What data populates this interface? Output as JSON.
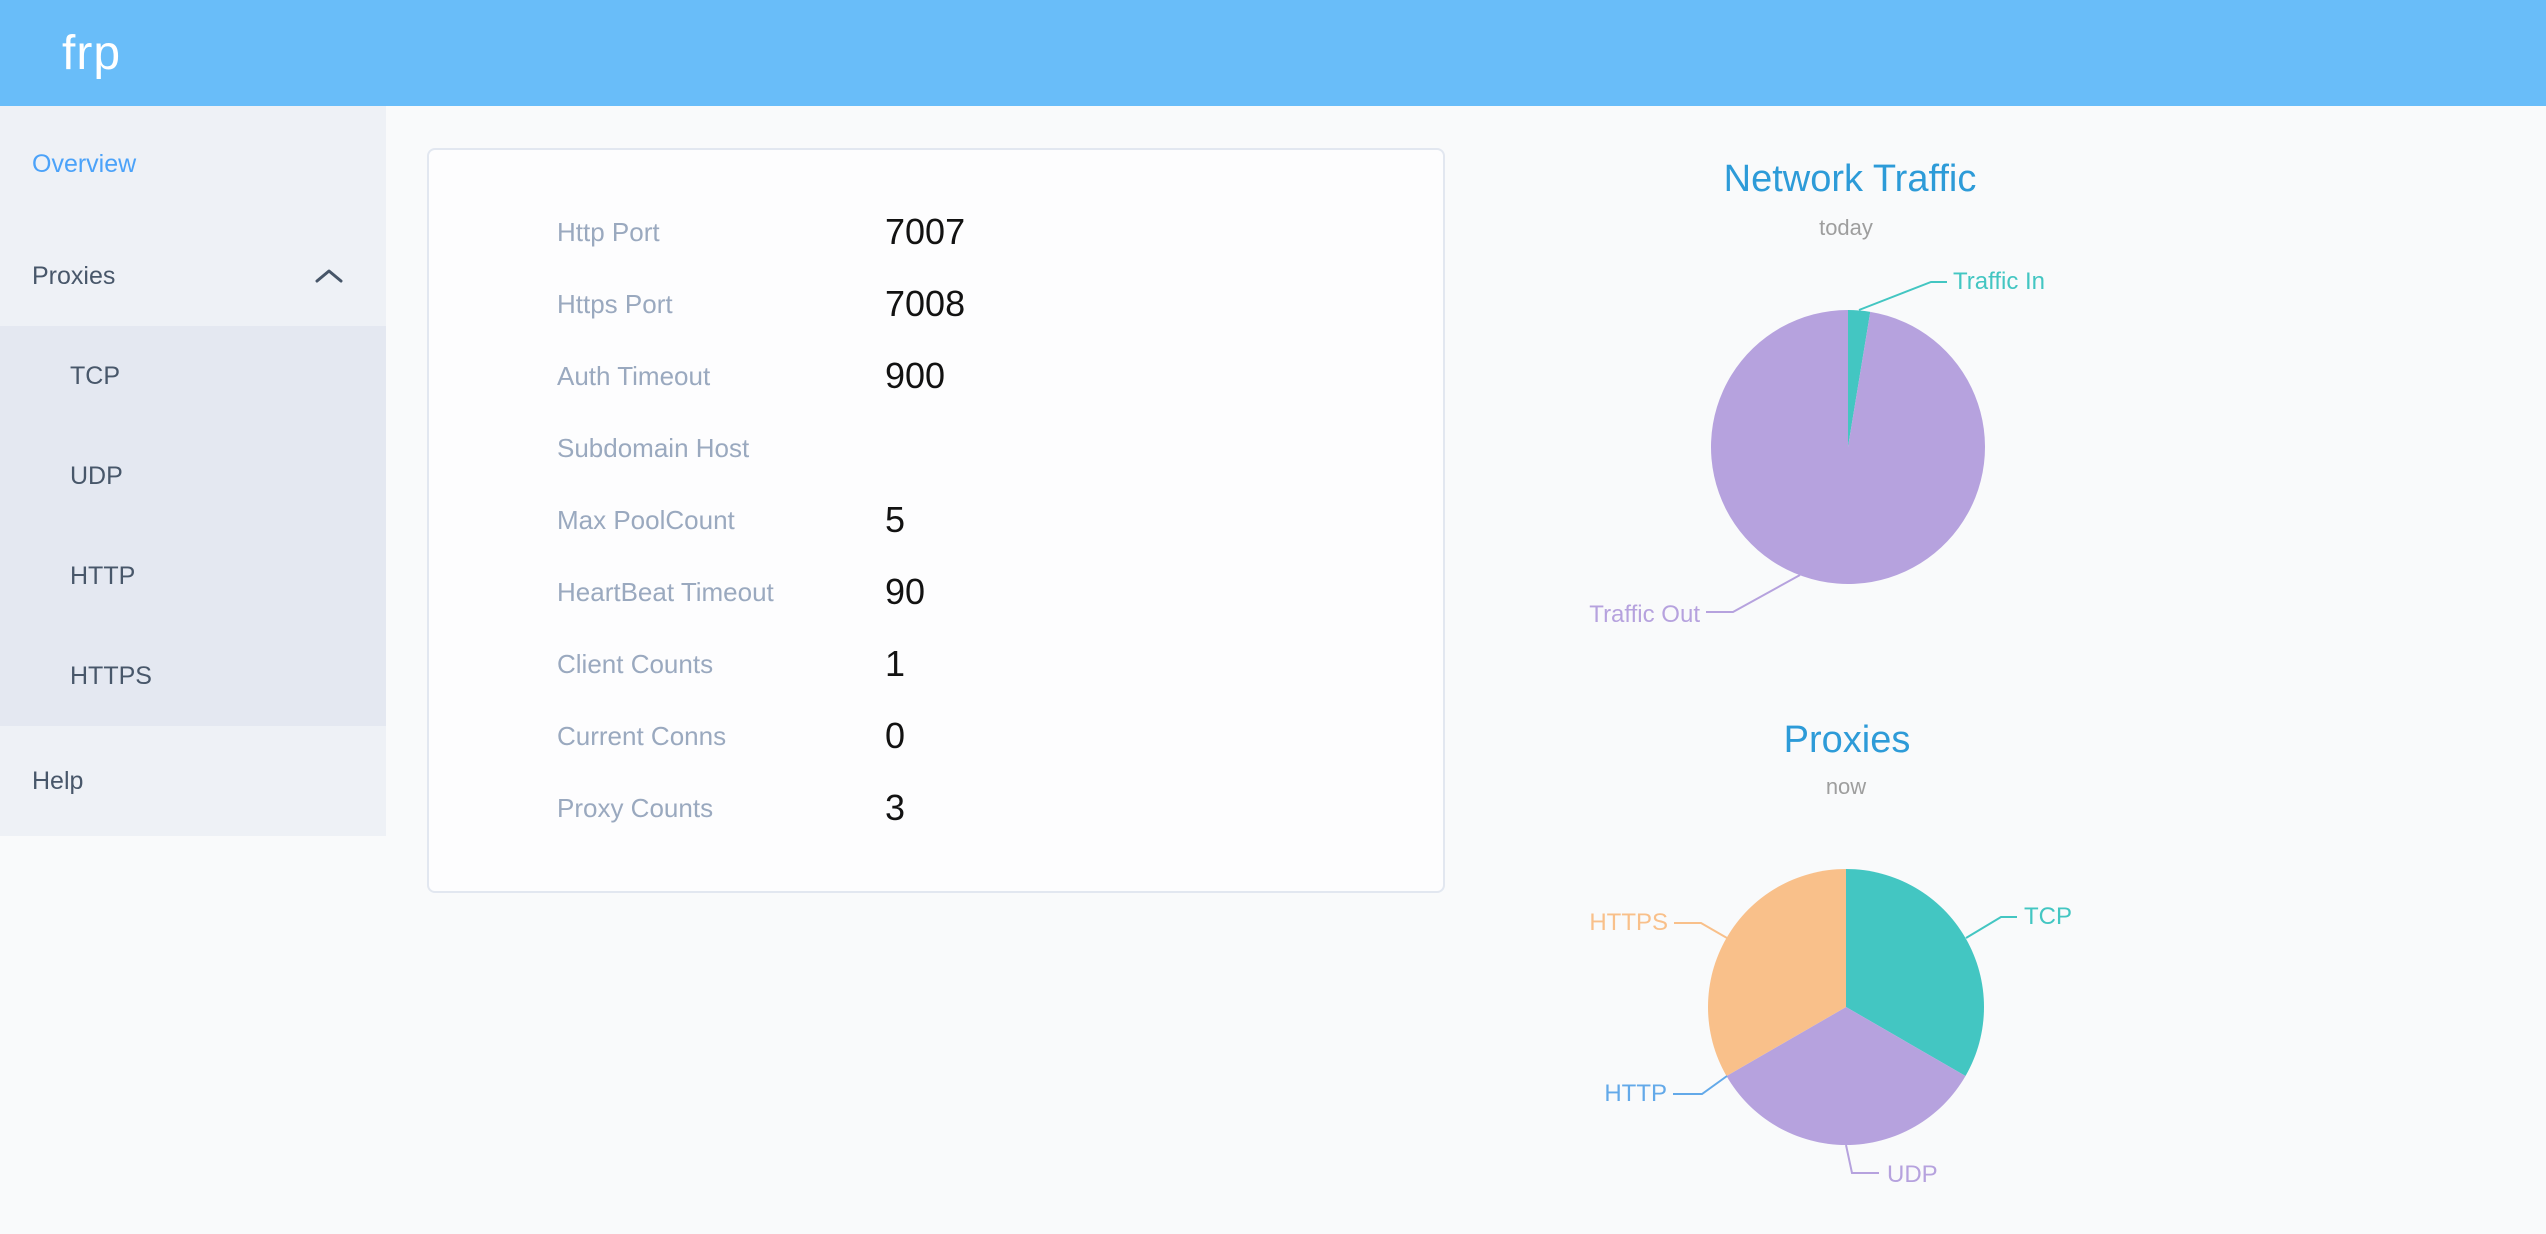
{
  "app": {
    "logo_text": "frp"
  },
  "colors": {
    "header_bg": "#69bdf9",
    "title_blue": "#2d9bd8",
    "active_menu_blue": "#4ba2f9",
    "menu_text": "#48576a",
    "label_gray": "#9aa9bf",
    "subtitle_gray": "#9e9e9e"
  },
  "sidebar": {
    "items": [
      {
        "label": "Overview",
        "active": true
      },
      {
        "label": "Proxies",
        "expanded": true
      },
      {
        "label": "TCP"
      },
      {
        "label": "UDP"
      },
      {
        "label": "HTTP"
      },
      {
        "label": "HTTPS"
      },
      {
        "label": "Help"
      }
    ]
  },
  "server_info": {
    "rows": [
      {
        "label": "Http Port",
        "value": "7007"
      },
      {
        "label": "Https Port",
        "value": "7008"
      },
      {
        "label": "Auth Timeout",
        "value": "900"
      },
      {
        "label": "Subdomain Host",
        "value": ""
      },
      {
        "label": "Max PoolCount",
        "value": "5"
      },
      {
        "label": "HeartBeat Timeout",
        "value": "90"
      },
      {
        "label": "Client Counts",
        "value": "1"
      },
      {
        "label": "Current Conns",
        "value": "0"
      },
      {
        "label": "Proxy Counts",
        "value": "3"
      }
    ]
  },
  "chart_data": [
    {
      "type": "pie",
      "title": "Network Traffic",
      "subtitle": "today",
      "labels": "outside",
      "legend": false,
      "series": [
        {
          "name": "Traffic In",
          "value": 2.6,
          "color": "#43c6c2"
        },
        {
          "name": "Traffic Out",
          "value": 97.4,
          "color": "#b6a2de"
        }
      ]
    },
    {
      "type": "pie",
      "title": "Proxies",
      "subtitle": "now",
      "labels": "outside",
      "legend": false,
      "series": [
        {
          "name": "TCP",
          "value": 1,
          "color": "#43c6c2"
        },
        {
          "name": "UDP",
          "value": 1,
          "color": "#b6a2de"
        },
        {
          "name": "HTTP",
          "value": 0,
          "color": "#63a9e9"
        },
        {
          "name": "HTTPS",
          "value": 1,
          "color": "#f9c08a"
        }
      ]
    }
  ]
}
